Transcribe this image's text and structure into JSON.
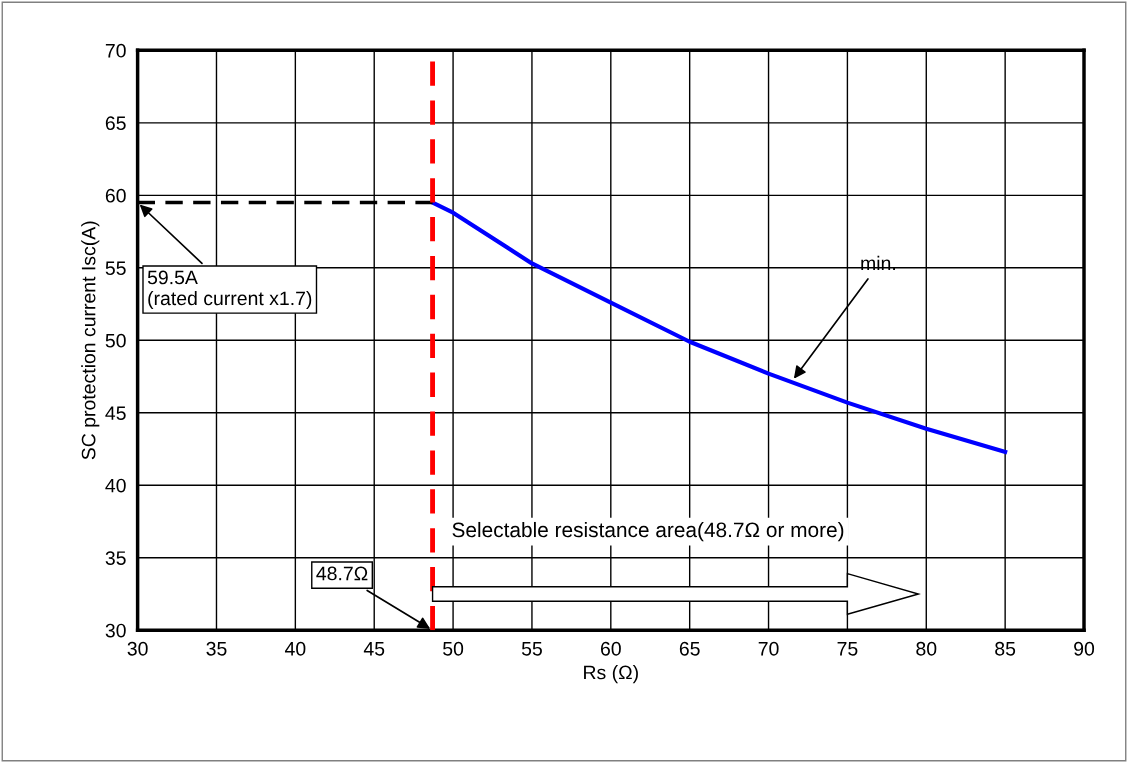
{
  "chart_data": {
    "type": "line",
    "xlabel": "Rs (Ω)",
    "ylabel": "SC protection current Isc(A)",
    "x": [
      48.7,
      50,
      55,
      60,
      65,
      70,
      75,
      80,
      85
    ],
    "series": [
      {
        "color": "#0000ff",
        "values": [
          59.5,
          58.8,
          55.3,
          52.6,
          49.9,
          47.7,
          45.7,
          43.9,
          42.3
        ]
      },
      {
        "type": "line",
        "x": [
          30,
          48.7
        ],
        "values": [
          59.5,
          59.5
        ],
        "color": "#000000",
        "line_style": "dashed"
      }
    ],
    "xlim": [
      30,
      90
    ],
    "xticks": [
      30,
      35,
      40,
      45,
      50,
      55,
      60,
      65,
      70,
      75,
      80,
      85,
      90
    ],
    "ylim": [
      30,
      70
    ],
    "yticks": [
      30,
      35,
      40,
      45,
      50,
      55,
      60,
      65,
      70
    ],
    "grid": true,
    "marker": "none",
    "line_style": "solid",
    "ref_lines": [
      {
        "axis": "x",
        "value": 48.7,
        "color": "#ff0000",
        "line_style": "dashed"
      }
    ],
    "annotations": [
      {
        "text": "59.5A\n(rated current x1.7)",
        "x": 30,
        "y": 59.5
      },
      {
        "text": "48.7Ω",
        "x": 48.7,
        "y": 30
      },
      {
        "text": "min.",
        "x": 71.5,
        "y": 47.2
      },
      "Selectable resistance area(48.7Ω or more)"
    ]
  }
}
